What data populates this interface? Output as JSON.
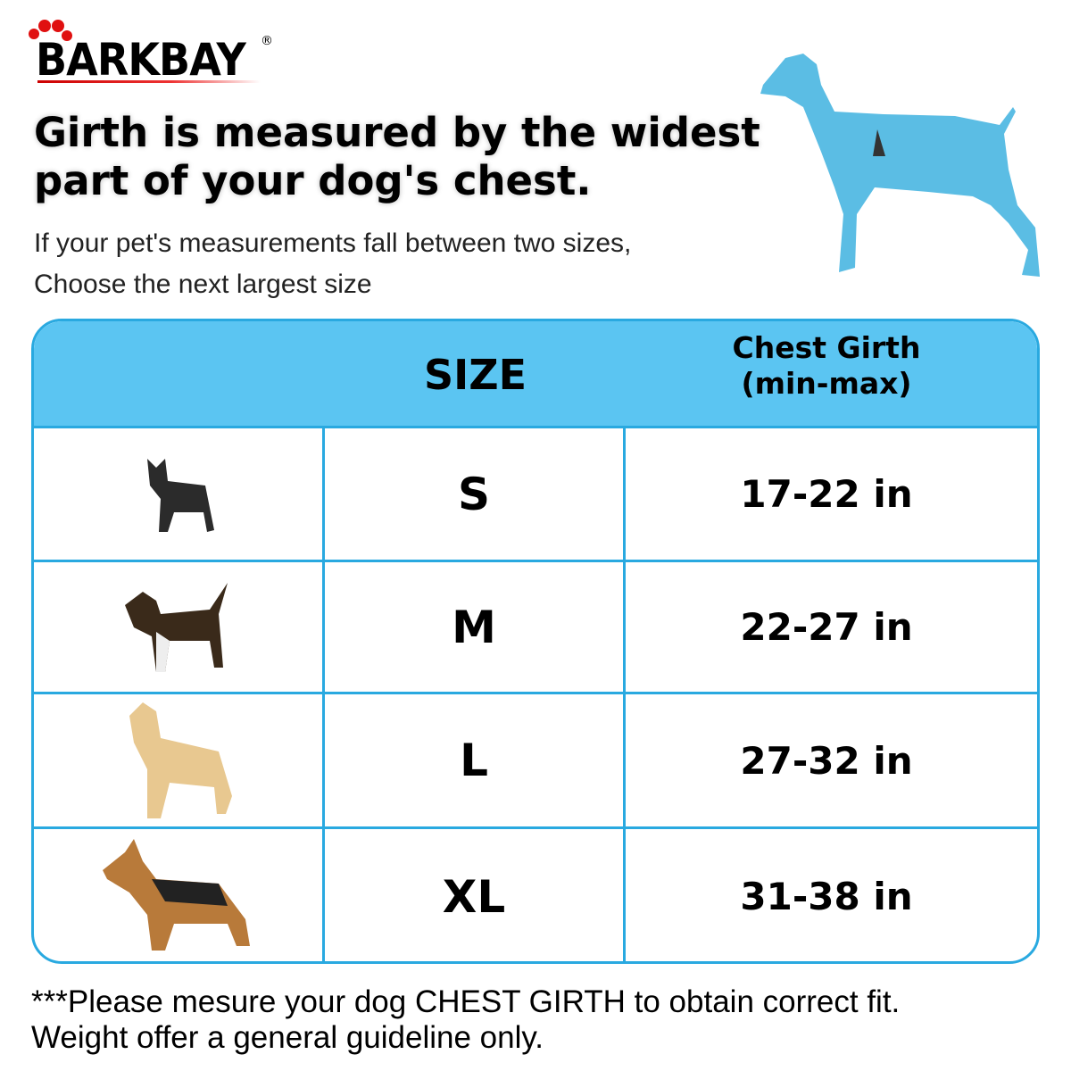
{
  "brand": {
    "name": "BARKBAY",
    "mark": "®",
    "colors": {
      "logo_red": "#e01010",
      "table_header": "#5bc5f2",
      "table_border": "#29a9e0"
    }
  },
  "headline": [
    "Girth is measured by the widest",
    "part of your dog's chest."
  ],
  "subtext": [
    "If your pet's measurements fall between two sizes,",
    "Choose the next largest size"
  ],
  "table": {
    "headers": {
      "size": "SIZE",
      "girth_line1": "Chest Girth",
      "girth_line2": "(min-max)"
    },
    "rows": [
      {
        "dog": "french-bulldog",
        "size": "S",
        "girth": "17-22 in"
      },
      {
        "dog": "beagle",
        "size": "M",
        "girth": "22-27 in"
      },
      {
        "dog": "golden-retriever",
        "size": "L",
        "girth": "27-32 in"
      },
      {
        "dog": "german-shepherd",
        "size": "XL",
        "girth": "31-38 in"
      }
    ]
  },
  "footer": [
    "***Please mesure your dog CHEST GIRTH to obtain correct fit.",
    "Weight offer a general guideline only."
  ]
}
